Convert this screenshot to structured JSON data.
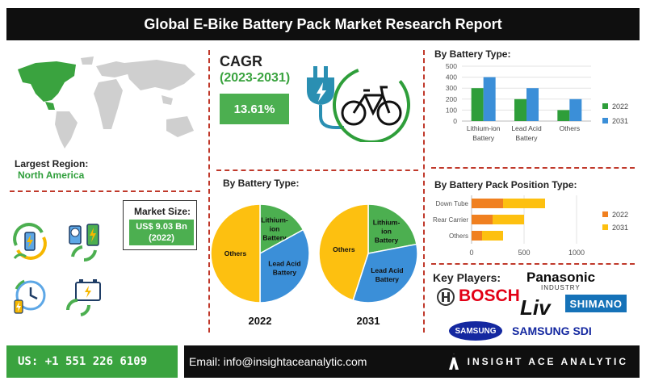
{
  "title": "Global E-Bike Battery Pack Market Research Report",
  "region": {
    "label": "Largest Region:",
    "value": "North America"
  },
  "market_size": {
    "label": "Market Size:",
    "value_line1": "US$ 9.03 Bn",
    "value_line2": "(2022)"
  },
  "cagr": {
    "label": "CAGR",
    "period": "(2023-2031)",
    "value": "13.61%"
  },
  "pie_section_title": "By Battery Type:",
  "bar1_title": "By Battery Type:",
  "bar2_title": "By Battery Pack Position Type:",
  "key_players": {
    "title": "Key Players:",
    "logos": [
      "BOSCH",
      "Panasonic",
      "INDUSTRY",
      "Liv",
      "SHIMANO",
      "SAMSUNG",
      "SAMSUNG SDI"
    ]
  },
  "footer": {
    "phone": "US: +1 551 226 6109",
    "email": "Email: info@insightaceanalytic.com",
    "brand": "INSIGHT ACE ANALYTIC"
  },
  "colors": {
    "green": "#4caf50",
    "blue": "#3b8fd8",
    "orange": "#f08020",
    "yellow": "#fdc010",
    "series2022": "#2e9e3a",
    "series2031": "#3b8fd8"
  },
  "icons": [
    "world-map-icon",
    "plug-icon",
    "bicycle-icon",
    "battery-recycle-icon",
    "battery-charging-icon",
    "clock-charging-icon",
    "battery-refresh-icon"
  ],
  "chart_data": [
    {
      "type": "pie",
      "title": "2022",
      "slices": [
        {
          "label": "Lithium-ion Battery",
          "value": 17,
          "color": "#4caf50"
        },
        {
          "label": "Lead Acid Battery",
          "value": 33,
          "color": "#3b8fd8"
        },
        {
          "label": "Others",
          "value": 50,
          "color": "#fdc010"
        }
      ]
    },
    {
      "type": "pie",
      "title": "2031",
      "slices": [
        {
          "label": "Lithium-ion Battery",
          "value": 22,
          "color": "#4caf50"
        },
        {
          "label": "Lead Acid Battery",
          "value": 33,
          "color": "#3b8fd8"
        },
        {
          "label": "Others",
          "value": 45,
          "color": "#fdc010"
        }
      ]
    },
    {
      "type": "bar",
      "categories": [
        "Lithium-ion Battery",
        "Lead Acid Battery",
        "Others"
      ],
      "category_lines": [
        [
          "Lithium-ion",
          "Battery"
        ],
        [
          "Lead Acid",
          "Battery"
        ],
        [
          "Others"
        ]
      ],
      "series": [
        {
          "name": "2022",
          "values": [
            300,
            200,
            100
          ],
          "color": "#2e9e3a"
        },
        {
          "name": "2031",
          "values": [
            400,
            300,
            200
          ],
          "color": "#3b8fd8"
        }
      ],
      "ylim": [
        0,
        500
      ],
      "yticks": [
        0,
        100,
        200,
        300,
        400,
        500
      ],
      "legend": "right"
    },
    {
      "type": "bar",
      "orientation": "horizontal",
      "stacked": true,
      "categories": [
        "Down Tube",
        "Rear Carrier",
        "Others"
      ],
      "series": [
        {
          "name": "2022",
          "values": [
            300,
            200,
            100
          ],
          "color": "#f08020"
        },
        {
          "name": "2031",
          "values": [
            400,
            300,
            200
          ],
          "color": "#fdc010"
        }
      ],
      "xlim": [
        0,
        1000
      ],
      "xticks": [
        0,
        500,
        1000
      ],
      "legend": "right"
    }
  ]
}
